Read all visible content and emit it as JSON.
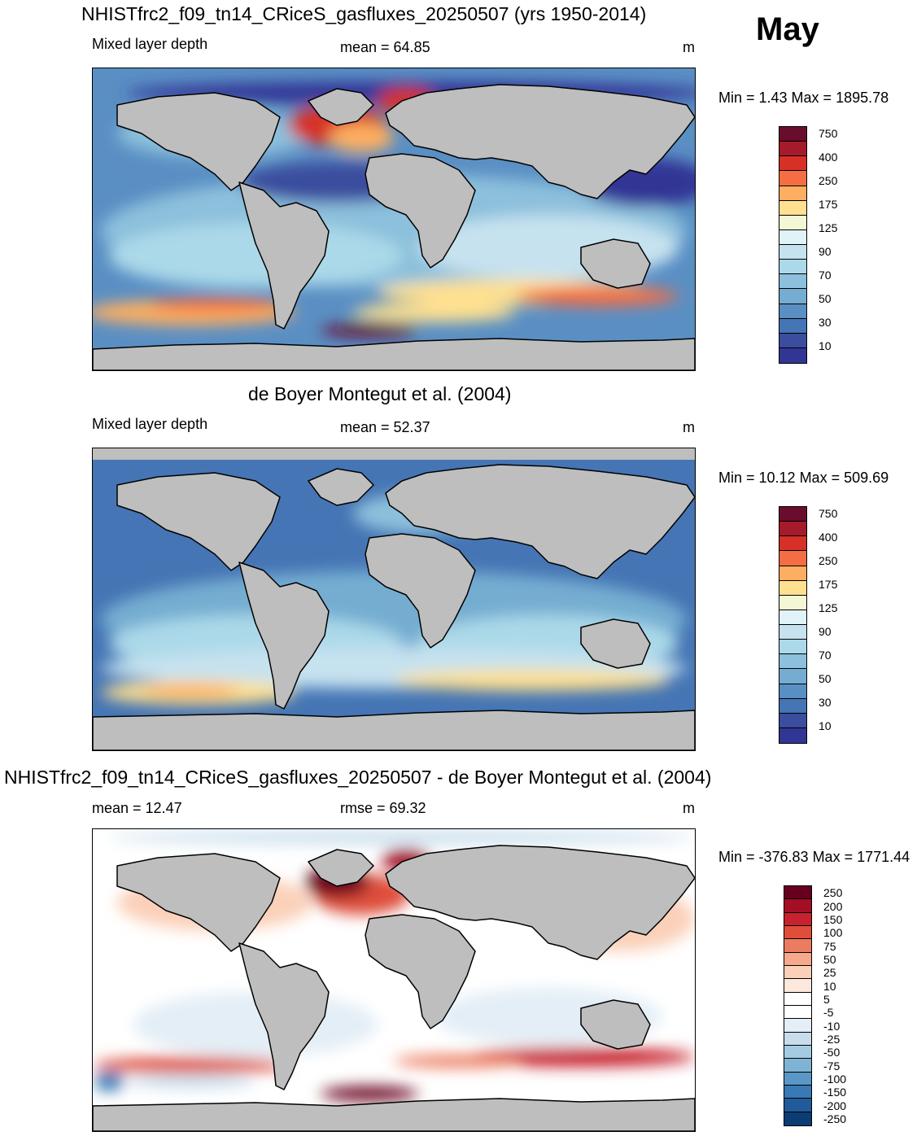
{
  "month": "May",
  "panels": [
    {
      "title": "NHISTfrc2_f09_tn14_CRiceS_gasfluxes_20250507 (yrs 1950-2014)",
      "left_label": "Mixed layer depth",
      "center_label": "mean =  64.85",
      "units": "m",
      "minmax": "Min =   1.43 Max = 1895.78",
      "colorbar_labels": [
        "750",
        "400",
        "250",
        "175",
        "125",
        "90",
        "70",
        "50",
        "30",
        "10"
      ]
    },
    {
      "title": "de Boyer Montegut et al. (2004)",
      "left_label": "Mixed layer depth",
      "center_label": "mean =  52.37",
      "units": "m",
      "minmax": "Min =  10.12 Max = 509.69",
      "colorbar_labels": [
        "750",
        "400",
        "250",
        "175",
        "125",
        "90",
        "70",
        "50",
        "30",
        "10"
      ]
    },
    {
      "title": "NHISTfrc2_f09_tn14_CRiceS_gasfluxes_20250507 - de Boyer Montegut et al. (2004)",
      "left_label": "mean =  12.47",
      "center_label": "rmse =  69.32",
      "units": "m",
      "minmax": "Min = -376.83 Max = 1771.44",
      "colorbar_labels": [
        "250",
        "200",
        "150",
        "100",
        "75",
        "50",
        "25",
        "10",
        "5",
        "-5",
        "-10",
        "-25",
        "-50",
        "-75",
        "-100",
        "-150",
        "-200",
        "-250"
      ]
    }
  ],
  "colors": {
    "seq": [
      "#6a0d2c",
      "#a51b2b",
      "#d73027",
      "#f46d43",
      "#fdae61",
      "#fee090",
      "#f3f7d6",
      "#e0f3f8",
      "#c6e2ef",
      "#abd9e9",
      "#8cc0dc",
      "#74add1",
      "#5a8fc4",
      "#4575b4",
      "#3a4d9e",
      "#313695"
    ],
    "div": [
      "#67001f",
      "#a50f26",
      "#c8212f",
      "#de4e3b",
      "#ec7c5f",
      "#f5a98a",
      "#fbd0b9",
      "#fde8dc",
      "#ffffff",
      "#ffffff",
      "#e3eef6",
      "#c7ddec",
      "#a5cbe2",
      "#7fb3d5",
      "#5a97c7",
      "#3979b5",
      "#225b9b",
      "#0b3c73"
    ],
    "land": "#bebebe"
  }
}
